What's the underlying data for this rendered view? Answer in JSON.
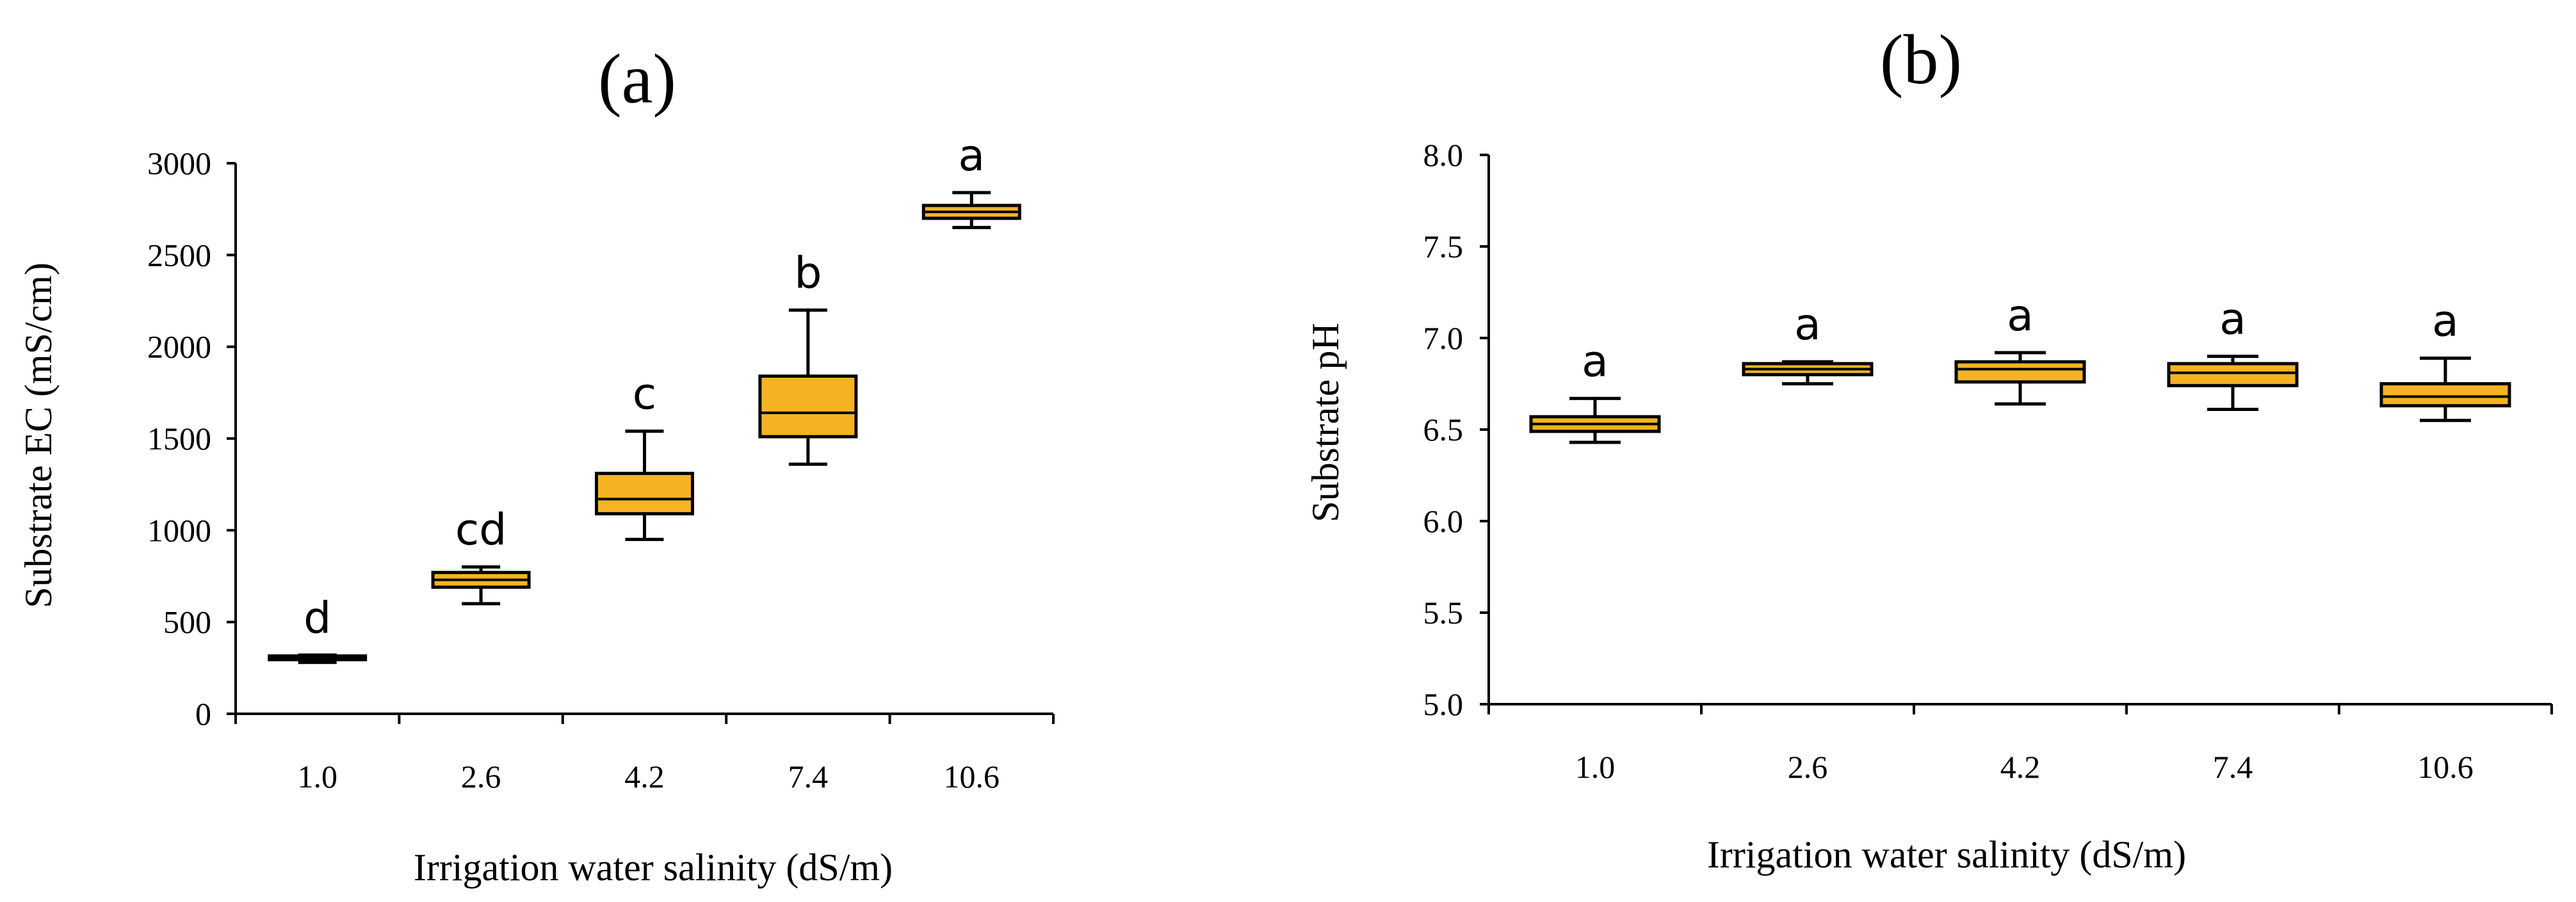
{
  "colors": {
    "box_fill": "#F5B323",
    "stroke": "#000000"
  },
  "chart_data": [
    {
      "type": "box",
      "panel_label": "(a)",
      "xlabel": "Irrigation water salinity (dS/m)",
      "ylabel": "Substrate EC (mS/cm)",
      "categories": [
        "1.0",
        "2.6",
        "4.2",
        "7.4",
        "10.6"
      ],
      "ylim": [
        0,
        3000
      ],
      "yticks": [
        0,
        500,
        1000,
        1500,
        2000,
        2500,
        3000
      ],
      "ytick_labels": [
        "0",
        "500",
        "1000",
        "1500",
        "2000",
        "2500",
        "3000"
      ],
      "boxes": [
        {
          "min": 280,
          "q1": 295,
          "median": 305,
          "q3": 315,
          "max": 320
        },
        {
          "min": 600,
          "q1": 690,
          "median": 730,
          "q3": 770,
          "max": 800
        },
        {
          "min": 950,
          "q1": 1090,
          "median": 1170,
          "q3": 1310,
          "max": 1540
        },
        {
          "min": 1360,
          "q1": 1510,
          "median": 1640,
          "q3": 1840,
          "max": 2200
        },
        {
          "min": 2650,
          "q1": 2700,
          "median": 2735,
          "q3": 2770,
          "max": 2840
        }
      ],
      "significance_letters": [
        "d",
        "cd",
        "c",
        "b",
        "a"
      ]
    },
    {
      "type": "box",
      "panel_label": "(b)",
      "xlabel": "Irrigation water salinity (dS/m)",
      "ylabel": "Substrate pH",
      "categories": [
        "1.0",
        "2.6",
        "4.2",
        "7.4",
        "10.6"
      ],
      "ylim": [
        5.0,
        8.0
      ],
      "yticks": [
        5.0,
        5.5,
        6.0,
        6.5,
        7.0,
        7.5,
        8.0
      ],
      "ytick_labels": [
        "5.0",
        "5.5",
        "6.0",
        "6.5",
        "7.0",
        "7.5",
        "8.0"
      ],
      "boxes": [
        {
          "min": 6.43,
          "q1": 6.49,
          "median": 6.53,
          "q3": 6.57,
          "max": 6.67
        },
        {
          "min": 6.75,
          "q1": 6.8,
          "median": 6.83,
          "q3": 6.86,
          "max": 6.87
        },
        {
          "min": 6.64,
          "q1": 6.76,
          "median": 6.83,
          "q3": 6.87,
          "max": 6.92
        },
        {
          "min": 6.61,
          "q1": 6.74,
          "median": 6.81,
          "q3": 6.86,
          "max": 6.9
        },
        {
          "min": 6.55,
          "q1": 6.63,
          "median": 6.68,
          "q3": 6.75,
          "max": 6.89
        }
      ],
      "significance_letters": [
        "a",
        "a",
        "a",
        "a",
        "a"
      ]
    }
  ]
}
